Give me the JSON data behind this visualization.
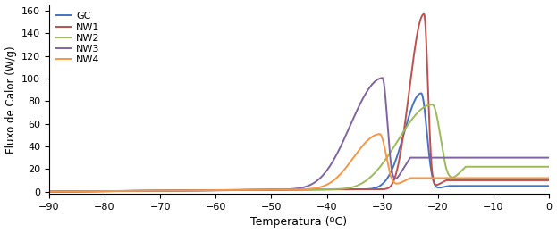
{
  "title": "",
  "xlabel": "Temperatura (ºC)",
  "ylabel": "Fluxo de Calor (W/g)",
  "xlim": [
    -90,
    0
  ],
  "ylim": [
    -2,
    165
  ],
  "xticks": [
    -90,
    -80,
    -70,
    -60,
    -50,
    -40,
    -30,
    -20,
    -10,
    0
  ],
  "yticks": [
    0,
    20,
    40,
    60,
    80,
    100,
    120,
    140,
    160
  ],
  "legend": [
    "GC",
    "NW1",
    "NW2",
    "NW3",
    "NW4"
  ],
  "colors": [
    "#4472C4",
    "#C0504D",
    "#9BBB59",
    "#8064A2",
    "#F79646"
  ],
  "background": "#FFFFFF",
  "figsize": [
    6.23,
    2.61
  ],
  "dpi": 100
}
